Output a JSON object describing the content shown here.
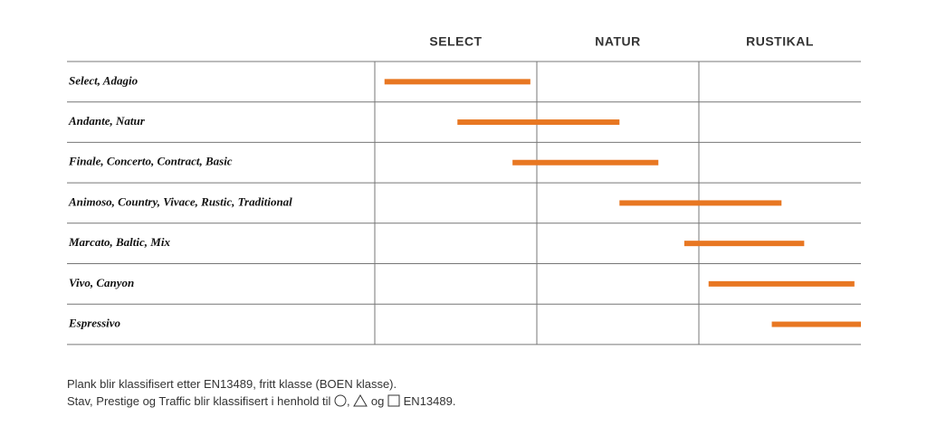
{
  "chart_data": {
    "type": "range_bar",
    "categories": [
      "SELECT",
      "NATUR",
      "RUSTIKAL"
    ],
    "rows": [
      "Select, Adagio",
      "Andante, Natur",
      "Finale, Concerto, Contract, Basic",
      "Animoso, Country, Vivace, Rustic, Traditional",
      "Marcato, Baltic, Mix",
      "Vivo, Canyon",
      "Espressivo"
    ],
    "starts": [
      0.06,
      0.51,
      0.85,
      1.51,
      1.91,
      2.06,
      2.45
    ],
    "ends": [
      0.96,
      1.51,
      1.75,
      2.51,
      2.65,
      2.96,
      3.0
    ],
    "xlim": [
      0,
      3
    ],
    "xticks": [
      0,
      1,
      2
    ],
    "grid": true,
    "color": "#e87722",
    "notes": [
      "Plank blir klassifisert etter EN13489, fritt klasse (BOEN klasse).",
      [
        "Stav, Prestige og Traffic blir klassifisert i henhold til",
        ",",
        "og",
        "EN13489."
      ]
    ]
  }
}
